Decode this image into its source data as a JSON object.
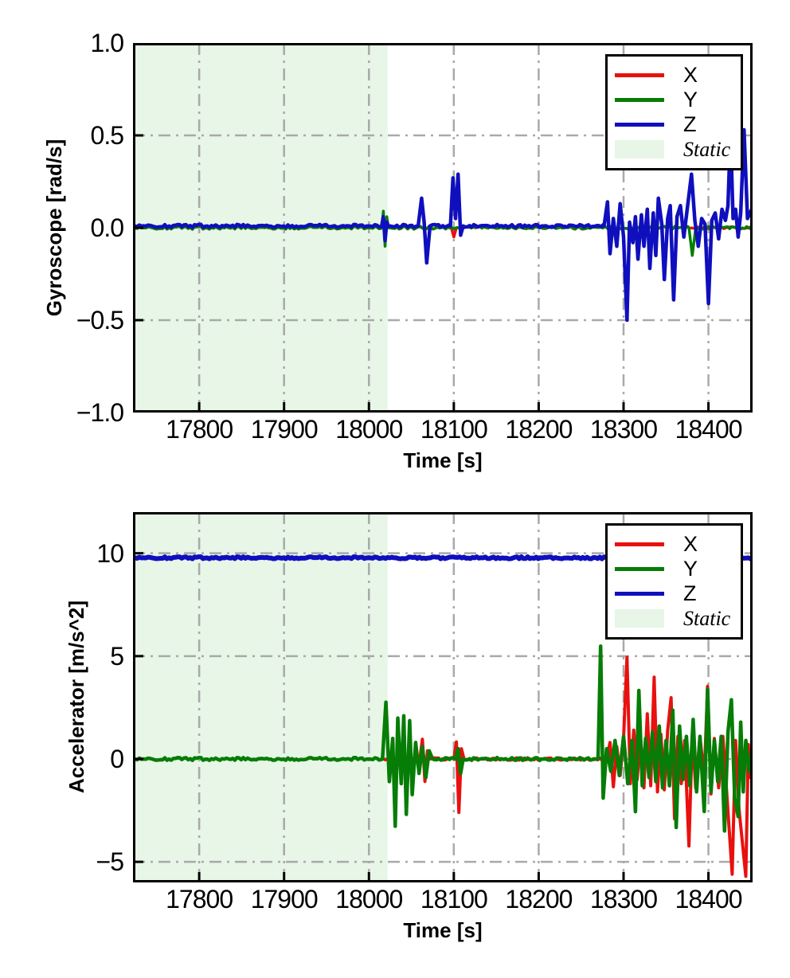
{
  "colors": {
    "x_series": "#e8110e",
    "y_series": "#067d06",
    "z_series": "#0f0fbe",
    "static_fill": "#e7f6e7",
    "grid": "#a9a9a9",
    "axis": "#000000",
    "background": "#ffffff"
  },
  "chart_data": [
    {
      "name": "gyroscope",
      "type": "line",
      "title": "",
      "xlabel": "Time [s]",
      "ylabel": "Gyroscope [rad/s]",
      "xlim": [
        17722,
        18452
      ],
      "ylim": [
        -1.0,
        1.0
      ],
      "xticks": [
        17800,
        17900,
        18000,
        18100,
        18200,
        18300,
        18400
      ],
      "xtick_labels": [
        "17800",
        "17900",
        "18000",
        "18100",
        "18200",
        "18300",
        "18400"
      ],
      "yticks": [
        1.0,
        0.5,
        0.0,
        -0.5,
        -1.0
      ],
      "ytick_labels": [
        "1.0",
        "0.5",
        "0.0",
        "−0.5",
        "−1.0"
      ],
      "grid": "dash-dot",
      "static_region": {
        "label": "Static",
        "x0": 17722,
        "x1": 18022,
        "color": "#e7f6e7"
      },
      "legend": {
        "position": "upper right",
        "entries": [
          {
            "label": "X",
            "color": "#e8110e",
            "type": "line"
          },
          {
            "label": "Y",
            "color": "#067d06",
            "type": "line"
          },
          {
            "label": "Z",
            "color": "#0f0fbe",
            "type": "line"
          },
          {
            "label": "Static",
            "color": "#e7f6e7",
            "type": "patch"
          }
        ]
      },
      "series": [
        {
          "name": "X",
          "color": "#e8110e",
          "width": 3.5,
          "noise": 0.008,
          "points": [
            [
              17722,
              0
            ],
            [
              18015,
              0
            ],
            [
              18017,
              0.05
            ],
            [
              18019,
              -0.06
            ],
            [
              18021,
              0.03
            ],
            [
              18023,
              0
            ],
            [
              18097,
              0
            ],
            [
              18100,
              -0.05
            ],
            [
              18103,
              0
            ],
            [
              18451,
              0
            ]
          ]
        },
        {
          "name": "Y",
          "color": "#067d06",
          "width": 3.5,
          "noise": 0.008,
          "points": [
            [
              17722,
              0
            ],
            [
              18015,
              0
            ],
            [
              18017,
              0.09
            ],
            [
              18019,
              -0.1
            ],
            [
              18021,
              0.06
            ],
            [
              18023,
              0
            ],
            [
              18377,
              0
            ],
            [
              18381,
              -0.15
            ],
            [
              18385,
              0
            ],
            [
              18451,
              0
            ]
          ]
        },
        {
          "name": "Z",
          "color": "#0f0fbe",
          "width": 4.5,
          "noise": 0.008,
          "points": [
            [
              17722,
              0.01
            ],
            [
              18015,
              0.01
            ],
            [
              18017,
              0.06
            ],
            [
              18019,
              -0.07
            ],
            [
              18021,
              0.03
            ],
            [
              18023,
              0.01
            ],
            [
              18058,
              0.01
            ],
            [
              18062,
              0.16
            ],
            [
              18065,
              0.03
            ],
            [
              18068,
              -0.19
            ],
            [
              18072,
              0.01
            ],
            [
              18096,
              0.01
            ],
            [
              18099,
              0.27
            ],
            [
              18102,
              0.05
            ],
            [
              18105,
              0.29
            ],
            [
              18108,
              -0.04
            ],
            [
              18111,
              0.01
            ],
            [
              18277,
              0.01
            ],
            [
              18281,
              0.14
            ],
            [
              18284,
              -0.14
            ],
            [
              18288,
              0.05
            ],
            [
              18292,
              -0.1
            ],
            [
              18296,
              0.13
            ],
            [
              18300,
              -0.05
            ],
            [
              18304,
              -0.5
            ],
            [
              18307,
              0.03
            ],
            [
              18311,
              -0.08
            ],
            [
              18314,
              0.06
            ],
            [
              18317,
              -0.17
            ],
            [
              18321,
              0.07
            ],
            [
              18324,
              -0.1
            ],
            [
              18328,
              0.1
            ],
            [
              18331,
              -0.22
            ],
            [
              18335,
              0.08
            ],
            [
              18338,
              -0.15
            ],
            [
              18341,
              0.16
            ],
            [
              18345,
              0.02
            ],
            [
              18348,
              -0.28
            ],
            [
              18352,
              0.05
            ],
            [
              18355,
              0.12
            ],
            [
              18359,
              -0.39
            ],
            [
              18363,
              0.06
            ],
            [
              18367,
              0.12
            ],
            [
              18371,
              -0.05
            ],
            [
              18375,
              0.1
            ],
            [
              18380,
              0.29
            ],
            [
              18384,
              0.04
            ],
            [
              18388,
              -0.1
            ],
            [
              18392,
              0.05
            ],
            [
              18396,
              0.02
            ],
            [
              18400,
              -0.41
            ],
            [
              18404,
              0.04
            ],
            [
              18408,
              0.08
            ],
            [
              18412,
              -0.06
            ],
            [
              18416,
              0.1
            ],
            [
              18420,
              0.04
            ],
            [
              18423,
              0.12
            ],
            [
              18426,
              0.52
            ],
            [
              18429,
              0.05
            ],
            [
              18432,
              0.1
            ],
            [
              18435,
              -0.05
            ],
            [
              18438,
              0.08
            ],
            [
              18442,
              0.53
            ],
            [
              18446,
              0.05
            ],
            [
              18451,
              0.1
            ]
          ]
        }
      ]
    },
    {
      "name": "accelerator",
      "type": "line",
      "title": "",
      "xlabel": "Time [s]",
      "ylabel": "Accelerator [m/s^2]",
      "xlim": [
        17722,
        18452
      ],
      "ylim": [
        -6,
        12
      ],
      "xticks": [
        17800,
        17900,
        18000,
        18100,
        18200,
        18300,
        18400
      ],
      "xtick_labels": [
        "17800",
        "17900",
        "18000",
        "18100",
        "18200",
        "18300",
        "18400"
      ],
      "yticks": [
        10,
        5,
        0,
        -5
      ],
      "ytick_labels": [
        "10",
        "5",
        "0",
        "−5"
      ],
      "grid": "dash-dot",
      "static_region": {
        "label": "Static",
        "x0": 17722,
        "x1": 18022,
        "color": "#e7f6e7"
      },
      "legend": {
        "position": "upper right",
        "entries": [
          {
            "label": "X",
            "color": "#e8110e",
            "type": "line"
          },
          {
            "label": "Y",
            "color": "#067d06",
            "type": "line"
          },
          {
            "label": "Z",
            "color": "#0f0fbe",
            "type": "line"
          },
          {
            "label": "Static",
            "color": "#e7f6e7",
            "type": "patch"
          }
        ]
      },
      "series": [
        {
          "name": "X",
          "color": "#e8110e",
          "width": 4,
          "noise": 0.06,
          "points": [
            [
              17722,
              0
            ],
            [
              18060,
              0
            ],
            [
              18063,
              0.96
            ],
            [
              18066,
              -1.09
            ],
            [
              18069,
              0.4
            ],
            [
              18072,
              0
            ],
            [
              18100,
              0
            ],
            [
              18103,
              0.83
            ],
            [
              18106,
              -2.6
            ],
            [
              18109,
              0.5
            ],
            [
              18112,
              0
            ],
            [
              18280,
              0
            ],
            [
              18284,
              0.8
            ],
            [
              18288,
              -1.35
            ],
            [
              18292,
              0.6
            ],
            [
              18296,
              -0.8
            ],
            [
              18300,
              1.0
            ],
            [
              18304,
              4.94
            ],
            [
              18308,
              -1.2
            ],
            [
              18312,
              1.4
            ],
            [
              18316,
              -1.0
            ],
            [
              18320,
              1.1
            ],
            [
              18324,
              -1.4
            ],
            [
              18328,
              2.2
            ],
            [
              18332,
              -1.3
            ],
            [
              18336,
              3.98
            ],
            [
              18340,
              -1.6
            ],
            [
              18344,
              1.2
            ],
            [
              18348,
              -1.5
            ],
            [
              18352,
              1.4
            ],
            [
              18356,
              2.98
            ],
            [
              18360,
              -2.9
            ],
            [
              18364,
              1.1
            ],
            [
              18368,
              -1.2
            ],
            [
              18372,
              0.9
            ],
            [
              18377,
              -4.23
            ],
            [
              18381,
              1.2
            ],
            [
              18385,
              -1.4
            ],
            [
              18390,
              1.1
            ],
            [
              18395,
              -0.9
            ],
            [
              18399,
              3.53
            ],
            [
              18403,
              -1.7
            ],
            [
              18407,
              1.0
            ],
            [
              18412,
              -1.4
            ],
            [
              18417,
              1.1
            ],
            [
              18422,
              -1.9
            ],
            [
              18428,
              -5.6
            ],
            [
              18432,
              0.9
            ],
            [
              18436,
              -2.4
            ],
            [
              18444,
              -5.7
            ],
            [
              18447,
              0.7
            ],
            [
              18449,
              -0.9
            ],
            [
              18451,
              0
            ]
          ]
        },
        {
          "name": "Y",
          "color": "#067d06",
          "width": 4.5,
          "noise": 0.07,
          "points": [
            [
              17722,
              0
            ],
            [
              18016,
              0
            ],
            [
              18020,
              2.76
            ],
            [
              18024,
              -1.1
            ],
            [
              18028,
              1.0
            ],
            [
              18031,
              -3.27
            ],
            [
              18034,
              1.99
            ],
            [
              18038,
              -1.2
            ],
            [
              18041,
              2.1
            ],
            [
              18044,
              -2.69
            ],
            [
              18048,
              1.86
            ],
            [
              18051,
              -1.73
            ],
            [
              18055,
              0.8
            ],
            [
              18059,
              -0.7
            ],
            [
              18063,
              0.6
            ],
            [
              18067,
              -0.9
            ],
            [
              18071,
              0.4
            ],
            [
              18075,
              0
            ],
            [
              18102,
              0
            ],
            [
              18105,
              0.5
            ],
            [
              18108,
              -0.7
            ],
            [
              18111,
              0
            ],
            [
              18270,
              0
            ],
            [
              18273,
              5.48
            ],
            [
              18276,
              -1.9
            ],
            [
              18280,
              0.5
            ],
            [
              18285,
              -0.6
            ],
            [
              18290,
              0.9
            ],
            [
              18295,
              -0.8
            ],
            [
              18300,
              1.1
            ],
            [
              18305,
              -1.2
            ],
            [
              18310,
              0.9
            ],
            [
              18314,
              -2.56
            ],
            [
              18318,
              3.33
            ],
            [
              18322,
              -1.3
            ],
            [
              18326,
              1.0
            ],
            [
              18330,
              -0.9
            ],
            [
              18334,
              1.3
            ],
            [
              18338,
              -1.1
            ],
            [
              18342,
              1.6
            ],
            [
              18346,
              -1.4
            ],
            [
              18350,
              0.9
            ],
            [
              18354,
              -1.3
            ],
            [
              18358,
              2.37
            ],
            [
              18362,
              -3.33
            ],
            [
              18366,
              1.6
            ],
            [
              18370,
              -1.0
            ],
            [
              18374,
              1.1
            ],
            [
              18378,
              -1.3
            ],
            [
              18382,
              1.92
            ],
            [
              18386,
              -1.6
            ],
            [
              18390,
              1.1
            ],
            [
              18395,
              -2.55
            ],
            [
              18399,
              3.4
            ],
            [
              18403,
              -1.6
            ],
            [
              18407,
              0.9
            ],
            [
              18411,
              -1.1
            ],
            [
              18415,
              1.1
            ],
            [
              18419,
              -3.5
            ],
            [
              18423,
              1.3
            ],
            [
              18427,
              2.88
            ],
            [
              18431,
              -1.9
            ],
            [
              18435,
              -2.8
            ],
            [
              18438,
              1.79
            ],
            [
              18441,
              -1.6
            ],
            [
              18444,
              0.9
            ],
            [
              18448,
              -0.6
            ],
            [
              18451,
              0.3
            ]
          ]
        },
        {
          "name": "Z",
          "color": "#0f0fbe",
          "width": 6,
          "noise": 0.05,
          "points": [
            [
              17722,
              9.78
            ],
            [
              18451,
              9.78
            ]
          ]
        }
      ]
    }
  ]
}
